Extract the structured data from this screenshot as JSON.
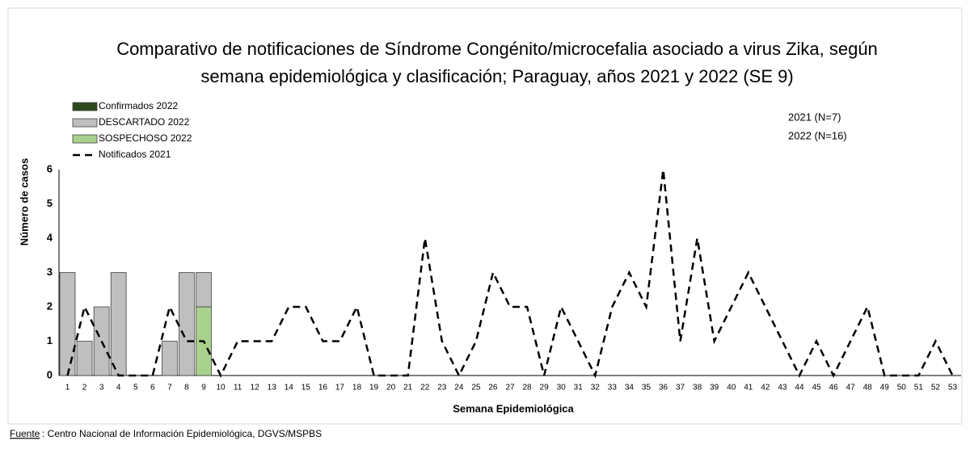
{
  "chart_data": {
    "type": "bar",
    "title": [
      "Comparativo de notificaciones de Síndrome Congénito/microcefalia asociado a virus Zika, según",
      "semana epidemiológica y clasificación;  Paraguay, años 2021 y 2022 (SE 9)"
    ],
    "xlabel": "Semana Epidemiológica",
    "ylabel": "Número de casos",
    "annotations": [
      "2021 (N=7)",
      "2022 (N=16)"
    ],
    "source_label": "Fuente",
    "source": ": Centro Nacional de Información  Epidemiológica, DGVS/MSPBS",
    "categories": [
      "1",
      "2",
      "3",
      "4",
      "5",
      "6",
      "7",
      "8",
      "9",
      "10",
      "11",
      "12",
      "13",
      "14",
      "15",
      "16",
      "17",
      "18",
      "19",
      "20",
      "21",
      "22",
      "23",
      "24",
      "25",
      "26",
      "27",
      "28",
      "29",
      "30",
      "31",
      "32",
      "33",
      "34",
      "35",
      "36",
      "37",
      "38",
      "39",
      "40",
      "41",
      "42",
      "43",
      "44",
      "45",
      "46",
      "47",
      "48",
      "49",
      "50",
      "51",
      "52",
      "53"
    ],
    "series": [
      {
        "name": "Confirmados 2022",
        "type": "bar",
        "color": "#2e4a1f",
        "values": [
          0,
          0,
          0,
          0,
          0,
          0,
          0,
          0,
          0,
          null,
          null,
          null,
          null,
          null,
          null,
          null,
          null,
          null,
          null,
          null,
          null,
          null,
          null,
          null,
          null,
          null,
          null,
          null,
          null,
          null,
          null,
          null,
          null,
          null,
          null,
          null,
          null,
          null,
          null,
          null,
          null,
          null,
          null,
          null,
          null,
          null,
          null,
          null,
          null,
          null,
          null,
          null,
          null
        ]
      },
      {
        "name": "DESCARTADO 2022",
        "type": "bar",
        "color": "#bfbfbf",
        "values": [
          3,
          1,
          2,
          3,
          0,
          0,
          1,
          3,
          1,
          null,
          null,
          null,
          null,
          null,
          null,
          null,
          null,
          null,
          null,
          null,
          null,
          null,
          null,
          null,
          null,
          null,
          null,
          null,
          null,
          null,
          null,
          null,
          null,
          null,
          null,
          null,
          null,
          null,
          null,
          null,
          null,
          null,
          null,
          null,
          null,
          null,
          null,
          null,
          null,
          null,
          null,
          null,
          null
        ]
      },
      {
        "name": "SOSPECHOSO 2022",
        "type": "bar",
        "color": "#a9d18e",
        "values": [
          0,
          0,
          0,
          0,
          0,
          0,
          0,
          0,
          2,
          null,
          null,
          null,
          null,
          null,
          null,
          null,
          null,
          null,
          null,
          null,
          null,
          null,
          null,
          null,
          null,
          null,
          null,
          null,
          null,
          null,
          null,
          null,
          null,
          null,
          null,
          null,
          null,
          null,
          null,
          null,
          null,
          null,
          null,
          null,
          null,
          null,
          null,
          null,
          null,
          null,
          null,
          null,
          null
        ]
      },
      {
        "name": "Notificados 2021",
        "type": "line",
        "color": "#000000",
        "values": [
          0,
          2,
          1,
          0,
          0,
          0,
          2,
          1,
          1,
          0,
          1,
          1,
          1,
          2,
          2,
          1,
          1,
          2,
          0,
          0,
          0,
          4,
          1,
          0,
          1,
          3,
          2,
          2,
          0,
          2,
          1,
          0,
          2,
          3,
          2,
          6,
          1,
          4,
          1,
          2,
          3,
          2,
          1,
          0,
          1,
          0,
          1,
          2,
          0,
          0,
          0,
          1,
          0
        ]
      }
    ],
    "stack_order": [
      2,
      1,
      0
    ],
    "ylim": [
      0,
      6
    ],
    "yticks": [
      0,
      1,
      2,
      3,
      4,
      5,
      6
    ],
    "grid": false
  }
}
